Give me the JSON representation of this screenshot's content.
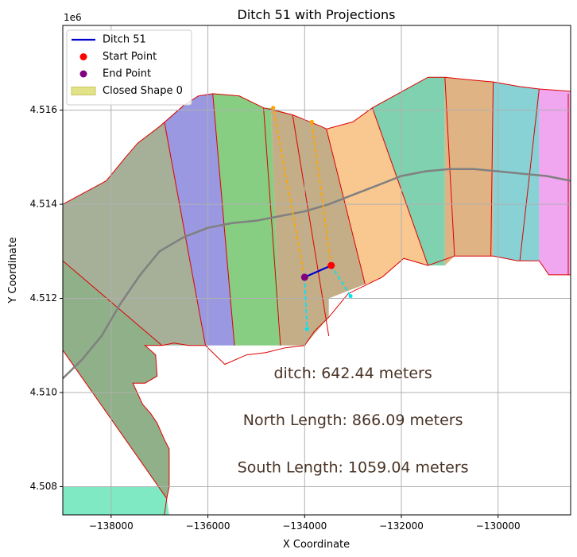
{
  "chart_data": {
    "type": "map",
    "title": "Ditch 51 with Projections",
    "xlabel": "X Coordinate",
    "ylabel": "Y Coordinate",
    "y_offset_label": "1e6",
    "xlim": [
      -139000,
      -128500
    ],
    "ylim": [
      4507400,
      4517800
    ],
    "x_ticks": [
      -138000,
      -136000,
      -134000,
      -132000,
      -130000
    ],
    "x_tick_labels": [
      "−138000",
      "−136000",
      "−134000",
      "−132000",
      "−130000"
    ],
    "y_ticks": [
      4508000,
      4510000,
      4512000,
      4514000,
      4516000
    ],
    "y_tick_labels": [
      "4.508",
      "4.510",
      "4.512",
      "4.514",
      "4.516"
    ],
    "grid": true,
    "legend_position": "top-left",
    "legend": [
      {
        "label": "Ditch 51",
        "kind": "line",
        "color": "#0000cc"
      },
      {
        "label": "Start Point",
        "kind": "dot",
        "color": "#ff0000"
      },
      {
        "label": "End Point",
        "kind": "dot",
        "color": "#800080"
      },
      {
        "label": "Closed Shape 0",
        "kind": "patch",
        "color": "#e2e288"
      }
    ],
    "annotations": [
      {
        "text": "ditch: 642.44 meters",
        "x": -133000,
        "y": 4510400
      },
      {
        "text": "North Length: 866.09 meters",
        "x": -133000,
        "y": 4509400
      },
      {
        "text": "South Length: 1059.04 meters",
        "x": -133000,
        "y": 4508400
      }
    ],
    "segments": [
      {
        "color": "#7fe9c4",
        "points": [
          [
            -139000,
            4510900
          ],
          [
            -136850,
            4507750
          ],
          [
            -136800,
            4508000
          ],
          [
            -139000,
            4508000
          ],
          [
            -139000,
            4507400
          ],
          [
            -136800,
            4507400
          ],
          [
            -136850,
            4507750
          ]
        ]
      },
      {
        "color": "#8fb088",
        "points": [
          [
            -139000,
            4512800
          ],
          [
            -136950,
            4511000
          ],
          [
            -137300,
            4511000
          ],
          [
            -137080,
            4510800
          ],
          [
            -137050,
            4510350
          ],
          [
            -137300,
            4510200
          ],
          [
            -137550,
            4510200
          ],
          [
            -137350,
            4509750
          ],
          [
            -137180,
            4509550
          ],
          [
            -137050,
            4509350
          ],
          [
            -136900,
            4509000
          ],
          [
            -136800,
            4508800
          ],
          [
            -136800,
            4508000
          ],
          [
            -136850,
            4507750
          ],
          [
            -139000,
            4510900
          ]
        ]
      },
      {
        "color": "#a6b098",
        "points": [
          [
            -139000,
            4514000
          ],
          [
            -138100,
            4514500
          ],
          [
            -137700,
            4515000
          ],
          [
            -137450,
            4515300
          ],
          [
            -137000,
            4515650
          ],
          [
            -136900,
            4515750
          ],
          [
            -136050,
            4511000
          ],
          [
            -136950,
            4511000
          ],
          [
            -139000,
            4512800
          ]
        ]
      },
      {
        "color": "#9a98e0",
        "points": [
          [
            -136900,
            4515750
          ],
          [
            -136500,
            4516100
          ],
          [
            -136200,
            4516300
          ],
          [
            -135900,
            4516350
          ],
          [
            -135450,
            4511000
          ],
          [
            -136050,
            4511000
          ]
        ]
      },
      {
        "color": "#87cd82",
        "points": [
          [
            -135900,
            4516350
          ],
          [
            -135350,
            4516300
          ],
          [
            -134850,
            4516050
          ],
          [
            -134700,
            4516050
          ],
          [
            -134500,
            4511000
          ],
          [
            -135450,
            4511000
          ]
        ]
      },
      {
        "color": "#c3ae88",
        "points": [
          [
            -134700,
            4516050
          ],
          [
            -134250,
            4515900
          ],
          [
            -133650,
            4515650
          ],
          [
            -133550,
            4515600
          ],
          [
            -132750,
            4512300
          ],
          [
            -133500,
            4512000
          ],
          [
            -133500,
            4511600
          ],
          [
            -134000,
            4511000
          ],
          [
            -134500,
            4511000
          ]
        ]
      },
      {
        "color": "#f8c890",
        "points": [
          [
            -133550,
            4515600
          ],
          [
            -133000,
            4515750
          ],
          [
            -132600,
            4516050
          ],
          [
            -131450,
            4512700
          ],
          [
            -131950,
            4512850
          ],
          [
            -132400,
            4512450
          ],
          [
            -132600,
            4512350
          ],
          [
            -132750,
            4512300
          ]
        ]
      },
      {
        "color": "#80d1b0",
        "points": [
          [
            -132600,
            4516050
          ],
          [
            -131450,
            4516700
          ],
          [
            -131100,
            4516700
          ],
          [
            -131100,
            4512700
          ],
          [
            -131450,
            4512700
          ]
        ]
      },
      {
        "color": "#e0b384",
        "points": [
          [
            -131100,
            4516700
          ],
          [
            -130650,
            4516650
          ],
          [
            -130100,
            4516600
          ],
          [
            -130100,
            4512900
          ],
          [
            -130900,
            4512900
          ],
          [
            -131100,
            4512700
          ]
        ]
      },
      {
        "color": "#88d2d6",
        "points": [
          [
            -130100,
            4516600
          ],
          [
            -129550,
            4516500
          ],
          [
            -129150,
            4516450
          ],
          [
            -129150,
            4512800
          ],
          [
            -129600,
            4512800
          ],
          [
            -130100,
            4512900
          ]
        ]
      },
      {
        "color": "#f1a6f0",
        "points": [
          [
            -129150,
            4516450
          ],
          [
            -128500,
            4516400
          ],
          [
            -128500,
            4512500
          ],
          [
            -128950,
            4512500
          ],
          [
            -129150,
            4512800
          ]
        ]
      }
    ],
    "boundaries": [
      [
        [
          -136850,
          4507750
        ],
        [
          -139000,
          4510900
        ]
      ],
      [
        [
          -136950,
          4511000
        ],
        [
          -139000,
          4512800
        ]
      ],
      [
        [
          -136900,
          4515750
        ],
        [
          -136050,
          4511000
        ]
      ],
      [
        [
          -135900,
          4516350
        ],
        [
          -135450,
          4511000
        ]
      ],
      [
        [
          -134850,
          4516050
        ],
        [
          -134500,
          4511000
        ]
      ],
      [
        [
          -134250,
          4515900
        ],
        [
          -133500,
          4511200
        ]
      ],
      [
        [
          -133550,
          4515600
        ],
        [
          -132750,
          4512300
        ]
      ],
      [
        [
          -132600,
          4516050
        ],
        [
          -131450,
          4512700
        ]
      ],
      [
        [
          -131100,
          4516700
        ],
        [
          -130900,
          4512900
        ]
      ],
      [
        [
          -130100,
          4516600
        ],
        [
          -130150,
          4512900
        ]
      ],
      [
        [
          -129150,
          4516450
        ],
        [
          -129550,
          4512800
        ]
      ],
      [
        [
          -128550,
          4516350
        ],
        [
          -128550,
          4512500
        ]
      ]
    ],
    "outline_top": [
      [
        -139000,
        4514000
      ],
      [
        -138100,
        4514500
      ],
      [
        -137700,
        4515000
      ],
      [
        -137450,
        4515300
      ],
      [
        -137000,
        4515650
      ],
      [
        -136500,
        4516100
      ],
      [
        -136200,
        4516300
      ],
      [
        -135900,
        4516350
      ],
      [
        -135350,
        4516300
      ],
      [
        -134850,
        4516050
      ],
      [
        -134250,
        4515900
      ],
      [
        -133650,
        4515650
      ],
      [
        -133550,
        4515600
      ],
      [
        -133000,
        4515750
      ],
      [
        -132600,
        4516050
      ],
      [
        -131450,
        4516700
      ],
      [
        -131100,
        4516700
      ],
      [
        -130650,
        4516650
      ],
      [
        -130100,
        4516600
      ],
      [
        -129550,
        4516500
      ],
      [
        -129150,
        4516450
      ],
      [
        -128500,
        4516400
      ]
    ],
    "outline_bottom": [
      [
        -128500,
        4512500
      ],
      [
        -128950,
        4512500
      ],
      [
        -129150,
        4512800
      ],
      [
        -129600,
        4512800
      ],
      [
        -130100,
        4512900
      ],
      [
        -130900,
        4512900
      ],
      [
        -131450,
        4512700
      ],
      [
        -131950,
        4512850
      ],
      [
        -132400,
        4512450
      ],
      [
        -132600,
        4512350
      ],
      [
        -133100,
        4512100
      ],
      [
        -133500,
        4511600
      ],
      [
        -133800,
        4511300
      ],
      [
        -134000,
        4511000
      ],
      [
        -134400,
        4510950
      ],
      [
        -134800,
        4510850
      ],
      [
        -135200,
        4510800
      ],
      [
        -135650,
        4510600
      ],
      [
        -136050,
        4511000
      ],
      [
        -136400,
        4511000
      ],
      [
        -136700,
        4511050
      ],
      [
        -136950,
        4511000
      ],
      [
        -137300,
        4511000
      ],
      [
        -137080,
        4510800
      ],
      [
        -137050,
        4510350
      ],
      [
        -137300,
        4510200
      ],
      [
        -137550,
        4510200
      ],
      [
        -137350,
        4509750
      ],
      [
        -137180,
        4509550
      ],
      [
        -137050,
        4509350
      ],
      [
        -136900,
        4509000
      ],
      [
        -136800,
        4508800
      ],
      [
        -136800,
        4508000
      ],
      [
        -136850,
        4507750
      ],
      [
        -136900,
        4507400
      ]
    ],
    "centerline": [
      [
        -139000,
        4510300
      ],
      [
        -138600,
        4510700
      ],
      [
        -138200,
        4511200
      ],
      [
        -137800,
        4511900
      ],
      [
        -137400,
        4512500
      ],
      [
        -137000,
        4513000
      ],
      [
        -136500,
        4513300
      ],
      [
        -136000,
        4513500
      ],
      [
        -135500,
        4513600
      ],
      [
        -135000,
        4513650
      ],
      [
        -134500,
        4513750
      ],
      [
        -134000,
        4513850
      ],
      [
        -133500,
        4514000
      ],
      [
        -133000,
        4514200
      ],
      [
        -132500,
        4514400
      ],
      [
        -132000,
        4514600
      ],
      [
        -131500,
        4514700
      ],
      [
        -131000,
        4514750
      ],
      [
        -130500,
        4514750
      ],
      [
        -130000,
        4514700
      ],
      [
        -129500,
        4514650
      ],
      [
        -129000,
        4514600
      ],
      [
        -128500,
        4514500
      ]
    ],
    "ditch_line": {
      "start": [
        -133450,
        4512700
      ],
      "end": [
        -134000,
        4512450
      ],
      "color": "#0000cc"
    },
    "start_point": {
      "x": -133450,
      "y": 4512700,
      "color": "#ff0000"
    },
    "end_point": {
      "x": -134000,
      "y": 4512450,
      "color": "#800080"
    },
    "north_projections": [
      {
        "from": [
          -133450,
          4512700
        ],
        "to": [
          -133850,
          4515750
        ]
      },
      {
        "from": [
          -134000,
          4512450
        ],
        "to": [
          -134650,
          4516050
        ]
      }
    ],
    "south_projections": [
      {
        "from": [
          -133450,
          4512700
        ],
        "to": [
          -133050,
          4512050
        ]
      },
      {
        "from": [
          -134000,
          4512450
        ],
        "to": [
          -133950,
          4511350
        ]
      }
    ]
  }
}
